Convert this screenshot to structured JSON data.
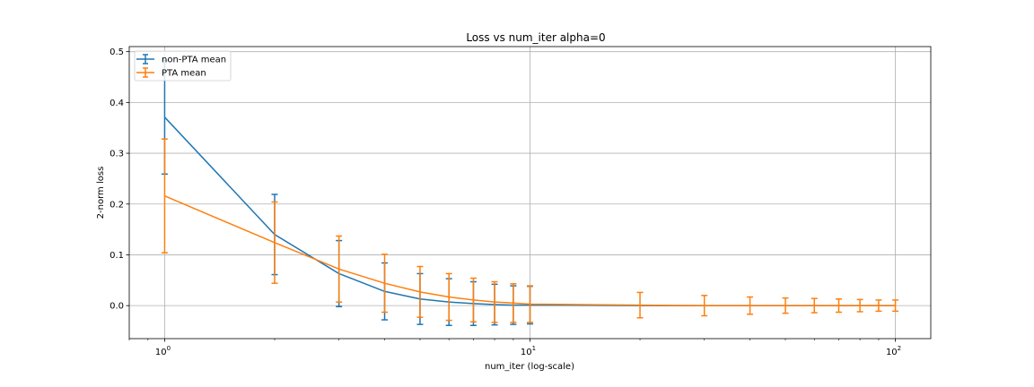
{
  "chart_data": {
    "type": "line",
    "title": "Loss vs num_iter alpha=0",
    "xlabel": "num_iter (log-scale)",
    "ylabel": "2-norm loss",
    "xscale": "log",
    "xlim": [
      0.8,
      125
    ],
    "ylim": [
      -0.065,
      0.51
    ],
    "grid": true,
    "legend_position": "top-left",
    "x_ticks": [
      {
        "value": 1,
        "base": "10",
        "exp": "0"
      },
      {
        "value": 10,
        "base": "10",
        "exp": "1"
      },
      {
        "value": 100,
        "base": "10",
        "exp": "2"
      }
    ],
    "y_ticks": [
      {
        "value": 0.0,
        "label": "0.0"
      },
      {
        "value": 0.1,
        "label": "0.1"
      },
      {
        "value": 0.2,
        "label": "0.2"
      },
      {
        "value": 0.3,
        "label": "0.3"
      },
      {
        "value": 0.4,
        "label": "0.4"
      },
      {
        "value": 0.5,
        "label": "0.5"
      }
    ],
    "x": [
      1,
      2,
      3,
      4,
      5,
      6,
      7,
      8,
      9,
      10,
      20,
      30,
      40,
      50,
      60,
      70,
      80,
      90,
      100
    ],
    "series": [
      {
        "name": "non-PTA mean",
        "color": "#1f77b4",
        "values": [
          0.371,
          0.14,
          0.063,
          0.028,
          0.013,
          0.007,
          0.004,
          0.002,
          0.001,
          0.001,
          0.0,
          0.0,
          0.0,
          0.0,
          0.0,
          0.0,
          0.0,
          0.0,
          0.0
        ],
        "errors": [
          0.112,
          0.079,
          0.065,
          0.056,
          0.05,
          0.046,
          0.043,
          0.04,
          0.038,
          0.037,
          0.0,
          0.0,
          0.0,
          0.0,
          0.0,
          0.0,
          0.0,
          0.0,
          0.0
        ]
      },
      {
        "name": "PTA mean",
        "color": "#ff7f0e",
        "values": [
          0.216,
          0.124,
          0.072,
          0.044,
          0.027,
          0.017,
          0.011,
          0.007,
          0.005,
          0.003,
          0.001,
          0.0,
          0.0,
          0.0,
          0.0,
          0.0,
          0.0,
          0.0,
          0.0
        ],
        "errors": [
          0.112,
          0.08,
          0.065,
          0.057,
          0.05,
          0.046,
          0.043,
          0.04,
          0.038,
          0.036,
          0.025,
          0.02,
          0.017,
          0.015,
          0.014,
          0.013,
          0.012,
          0.011,
          0.011
        ]
      }
    ]
  }
}
